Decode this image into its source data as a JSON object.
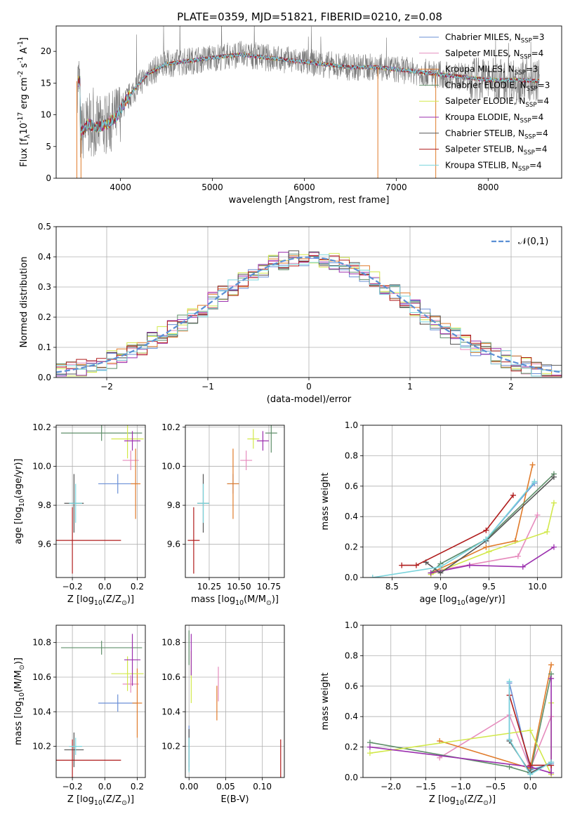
{
  "title": "PLATE=0359, MJD=51821, FIBERID=0210, z=0.08",
  "colors": [
    "#6a8fd6",
    "#e68bbd",
    "#e07b2a",
    "#5f8f6a",
    "#d2e84a",
    "#9b2fae",
    "#555555",
    "#b01c1c",
    "#7ad4dc"
  ],
  "legend": [
    "Chabrier MILES, N$_{SSP}$=3",
    "Salpeter MILES, N$_{SSP}$=4",
    "Kroupa MILES, N$_{SSP}$=3",
    "Chabrier ELODIE, N$_{SSP}$=3",
    "Salpeter ELODIE, N$_{SSP}$=4",
    "Kroupa ELODIE, N$_{SSP}$=4",
    "Chabrier STELIB, N$_{SSP}$=4",
    "Salpeter STELIB, N$_{SSP}$=4",
    "Kroupa STELIB, N$_{SSP}$=4"
  ],
  "chart_data": [
    {
      "id": "spectrum",
      "type": "line",
      "xlabel": "wavelength [Angstrom, rest frame]",
      "ylabel": "Flux [f$_\\lambda$10$^{-17}$ erg cm$^{-2}$ s$^{-1}$ A$^{-1}$]",
      "xlim": [
        3300,
        8800
      ],
      "ylim": [
        0,
        24
      ],
      "xticks": [
        4000,
        5000,
        6000,
        7000,
        8000
      ],
      "yticks": [
        0,
        5,
        10,
        15,
        20
      ],
      "continuum": [
        [
          3560,
          7
        ],
        [
          3650,
          8.5
        ],
        [
          3760,
          8
        ],
        [
          3850,
          8.5
        ],
        [
          3950,
          9.5
        ],
        [
          4050,
          12
        ],
        [
          4150,
          14
        ],
        [
          4300,
          16.5
        ],
        [
          4500,
          18
        ],
        [
          4750,
          18.5
        ],
        [
          5000,
          19
        ],
        [
          5300,
          19.5
        ],
        [
          5600,
          19
        ],
        [
          5900,
          18.5
        ],
        [
          6200,
          18
        ],
        [
          6500,
          17.5
        ],
        [
          6800,
          17.5
        ],
        [
          7100,
          17
        ],
        [
          7400,
          16.5
        ],
        [
          7700,
          16
        ],
        [
          8000,
          15.5
        ],
        [
          8300,
          15.5
        ],
        [
          8550,
          15.3
        ]
      ],
      "data_note_lines": [
        [
          3525,
          0
        ],
        [
          3570,
          0
        ],
        [
          6800,
          0
        ],
        [
          7430,
          0
        ]
      ]
    },
    {
      "id": "residuals",
      "type": "line",
      "xlabel": "(data-model)/error",
      "ylabel": "Normed distribution",
      "xlim": [
        -2.5,
        2.5
      ],
      "ylim": [
        0,
        0.5
      ],
      "xticks": [
        -2,
        -1,
        0,
        1,
        2
      ],
      "yticks": [
        0.0,
        0.1,
        0.2,
        0.3,
        0.4,
        0.5
      ],
      "legend": "$\\mathcal{N}(0,1)$"
    },
    {
      "id": "age_vs_Z",
      "type": "scatter",
      "xlabel": "Z [log$_{10}$(Z/Z$_\\odot$)]",
      "ylabel": "age  [log$_{10}$(age/yr)]",
      "xlim": [
        -0.3,
        0.25
      ],
      "ylim": [
        9.43,
        10.21
      ],
      "xticks": [
        -0.2,
        0.0,
        0.2
      ],
      "yticks": [
        9.6,
        9.8,
        10.0,
        10.2
      ],
      "points": [
        {
          "x": 0.08,
          "y": 9.91,
          "xe": 0.12,
          "ye": 0.05
        },
        {
          "x": 0.16,
          "y": 10.03,
          "xe": 0.05,
          "ye": 0.05
        },
        {
          "x": 0.19,
          "y": 9.91,
          "xe": 0.03,
          "ye": 0.18
        },
        {
          "x": -0.02,
          "y": 10.17,
          "xe": 0.25,
          "ye": 0.04
        },
        {
          "x": 0.14,
          "y": 10.14,
          "xe": 0.1,
          "ye": 0.1
        },
        {
          "x": 0.17,
          "y": 10.13,
          "xe": 0.05,
          "ye": 0.05
        },
        {
          "x": -0.19,
          "y": 9.81,
          "xe": 0.06,
          "ye": 0.15
        },
        {
          "x": -0.2,
          "y": 9.62,
          "xe": 0.3,
          "ye": 0.17
        },
        {
          "x": -0.18,
          "y": 9.81,
          "xe": 0.04,
          "ye": 0.1
        }
      ]
    },
    {
      "id": "age_vs_mass",
      "type": "scatter",
      "xlabel": "mass [log$_{10}$(M/M$_\\odot$)]",
      "ylabel": "",
      "xlim": [
        10.05,
        10.88
      ],
      "ylim": [
        9.43,
        10.21
      ],
      "xticks": [
        10.25,
        10.5,
        10.75
      ],
      "yticks": [
        9.6,
        9.8,
        10.0,
        10.2
      ],
      "points": [
        {
          "x": 10.45,
          "y": 9.91,
          "xe": 0.05,
          "ye": 0.05
        },
        {
          "x": 10.56,
          "y": 10.03,
          "xe": 0.05,
          "ye": 0.05
        },
        {
          "x": 10.45,
          "y": 9.91,
          "xe": 0.05,
          "ye": 0.18
        },
        {
          "x": 10.77,
          "y": 10.17,
          "xe": 0.05,
          "ye": 0.1
        },
        {
          "x": 10.62,
          "y": 10.14,
          "xe": 0.05,
          "ye": 0.05
        },
        {
          "x": 10.7,
          "y": 10.13,
          "xe": 0.05,
          "ye": 0.05
        },
        {
          "x": 10.2,
          "y": 9.81,
          "xe": 0.05,
          "ye": 0.15
        },
        {
          "x": 10.12,
          "y": 9.62,
          "xe": 0.05,
          "ye": 0.17
        },
        {
          "x": 10.2,
          "y": 9.81,
          "xe": 0.05,
          "ye": 0.1
        }
      ]
    },
    {
      "id": "mw_vs_age",
      "type": "line",
      "xlabel": "age  [log$_{10}$(age/yr)]",
      "ylabel": "mass weight",
      "xlim": [
        8.2,
        10.25
      ],
      "ylim": [
        0,
        1.0
      ],
      "xticks": [
        8.5,
        9.0,
        9.5,
        10.0
      ],
      "yticks": [
        0.0,
        0.2,
        0.4,
        0.6,
        0.8,
        1.0
      ],
      "series": [
        {
          "x": [
            8.9,
            9.0,
            9.47,
            9.97
          ],
          "y": [
            0.03,
            0.09,
            0.25,
            0.62
          ]
        },
        {
          "x": [
            8.9,
            9.0,
            9.8,
            10.0
          ],
          "y": [
            0.02,
            0.05,
            0.14,
            0.41
          ]
        },
        {
          "x": [
            8.9,
            9.47,
            9.77,
            9.95
          ],
          "y": [
            0.03,
            0.2,
            0.24,
            0.74
          ]
        },
        {
          "x": [
            8.9,
            9.0,
            9.47,
            10.17
          ],
          "y": [
            0.03,
            0.09,
            0.25,
            0.68
          ]
        },
        {
          "x": [
            8.9,
            9.5,
            10.1,
            10.17
          ],
          "y": [
            0.02,
            0.17,
            0.3,
            0.49
          ]
        },
        {
          "x": [
            8.9,
            9.3,
            9.85,
            10.17
          ],
          "y": [
            0.03,
            0.08,
            0.07,
            0.2
          ]
        },
        {
          "x": [
            8.85,
            9.0,
            9.47,
            10.17
          ],
          "y": [
            0.1,
            0.03,
            0.24,
            0.66
          ]
        },
        {
          "x": [
            8.6,
            8.75,
            9.47,
            9.75
          ],
          "y": [
            0.08,
            0.08,
            0.31,
            0.54
          ]
        },
        {
          "x": [
            8.3,
            9.0,
            9.47,
            9.97
          ],
          "y": [
            0.0,
            0.07,
            0.25,
            0.63
          ]
        }
      ]
    },
    {
      "id": "mass_vs_Z",
      "type": "scatter",
      "xlabel": "Z [log$_{10}$(Z/Z$_\\odot$)]",
      "ylabel": "mass [log$_{10}$(M/M$_\\odot$)]",
      "xlim": [
        -0.3,
        0.25
      ],
      "ylim": [
        10.02,
        10.9
      ],
      "xticks": [
        -0.2,
        0.0,
        0.2
      ],
      "yticks": [
        10.2,
        10.4,
        10.6,
        10.8
      ],
      "points": [
        {
          "x": 0.08,
          "y": 10.45,
          "xe": 0.12,
          "ye": 0.05
        },
        {
          "x": 0.16,
          "y": 10.56,
          "xe": 0.05,
          "ye": 0.05
        },
        {
          "x": 0.2,
          "y": 10.45,
          "xe": 0.03,
          "ye": 0.2
        },
        {
          "x": -0.02,
          "y": 10.77,
          "xe": 0.25,
          "ye": 0.04
        },
        {
          "x": 0.14,
          "y": 10.62,
          "xe": 0.1,
          "ye": 0.1
        },
        {
          "x": 0.17,
          "y": 10.7,
          "xe": 0.05,
          "ye": 0.15
        },
        {
          "x": -0.19,
          "y": 10.18,
          "xe": 0.06,
          "ye": 0.1
        },
        {
          "x": -0.2,
          "y": 10.12,
          "xe": 0.3,
          "ye": 0.12
        },
        {
          "x": -0.18,
          "y": 10.2,
          "xe": 0.04,
          "ye": 0.05
        }
      ]
    },
    {
      "id": "mass_vs_ebv",
      "type": "scatter",
      "xlabel": "E(B-V)",
      "ylabel": "",
      "xlim": [
        -0.005,
        0.13
      ],
      "ylim": [
        10.02,
        10.9
      ],
      "xticks": [
        0.0,
        0.05,
        0.1
      ],
      "yticks": [
        10.2,
        10.4,
        10.6,
        10.8
      ],
      "points": [
        {
          "x": 0.0,
          "y": 10.2,
          "xe": 0,
          "ye": 0.12
        },
        {
          "x": 0.04,
          "y": 10.56,
          "xe": 0,
          "ye": 0.1
        },
        {
          "x": 0.038,
          "y": 10.45,
          "xe": 0,
          "ye": 0.1
        },
        {
          "x": 0.0,
          "y": 10.77,
          "xe": 0,
          "ye": 0.1
        },
        {
          "x": 0.003,
          "y": 10.6,
          "xe": 0,
          "ye": 0.15
        },
        {
          "x": 0.003,
          "y": 10.73,
          "xe": 0,
          "ye": 0.12
        },
        {
          "x": 0.0,
          "y": 10.18,
          "xe": 0,
          "ye": 0.12
        },
        {
          "x": 0.125,
          "y": 10.12,
          "xe": 0,
          "ye": 0.12
        },
        {
          "x": 0.0,
          "y": 10.15,
          "xe": 0,
          "ye": 0.1
        }
      ]
    },
    {
      "id": "mw_vs_Z",
      "type": "line",
      "xlabel": "Z [log$_{10}$(Z/Z$_\\odot$)]",
      "ylabel": "mass weight",
      "xlim": [
        -2.4,
        0.45
      ],
      "ylim": [
        0,
        1.0
      ],
      "xticks": [
        -2.0,
        -1.5,
        -1.0,
        -0.5,
        0.0
      ],
      "yticks": [
        0.0,
        0.2,
        0.4,
        0.6,
        0.8,
        1.0
      ],
      "series": [
        {
          "x": [
            -0.3,
            -0.3,
            0.0,
            0.3
          ],
          "y": [
            0.25,
            0.62,
            0.05,
            0.09
          ]
        },
        {
          "x": [
            -1.3,
            -0.3,
            0.0,
            0.3
          ],
          "y": [
            0.13,
            0.41,
            0.06,
            0.4
          ]
        },
        {
          "x": [
            -1.3,
            0.0,
            0.3
          ],
          "y": [
            0.24,
            0.06,
            0.74
          ]
        },
        {
          "x": [
            -2.3,
            -0.3,
            0.0,
            0.3
          ],
          "y": [
            0.23,
            0.07,
            0.03,
            0.68
          ]
        },
        {
          "x": [
            -2.3,
            0.0,
            0.3,
            0.3
          ],
          "y": [
            0.16,
            0.31,
            0.02,
            0.49
          ]
        },
        {
          "x": [
            -2.3,
            0.0,
            0.3,
            0.3
          ],
          "y": [
            0.2,
            0.07,
            0.03,
            0.65
          ]
        },
        {
          "x": [
            -0.3,
            0.0,
            0.3
          ],
          "y": [
            0.24,
            0.03,
            0.1
          ]
        },
        {
          "x": [
            -0.3,
            0.0,
            0.3
          ],
          "y": [
            0.54,
            0.08,
            0.08
          ]
        },
        {
          "x": [
            -0.3,
            -0.3,
            0.0,
            0.3
          ],
          "y": [
            0.63,
            0.25,
            0.02,
            0.1
          ]
        }
      ]
    }
  ]
}
